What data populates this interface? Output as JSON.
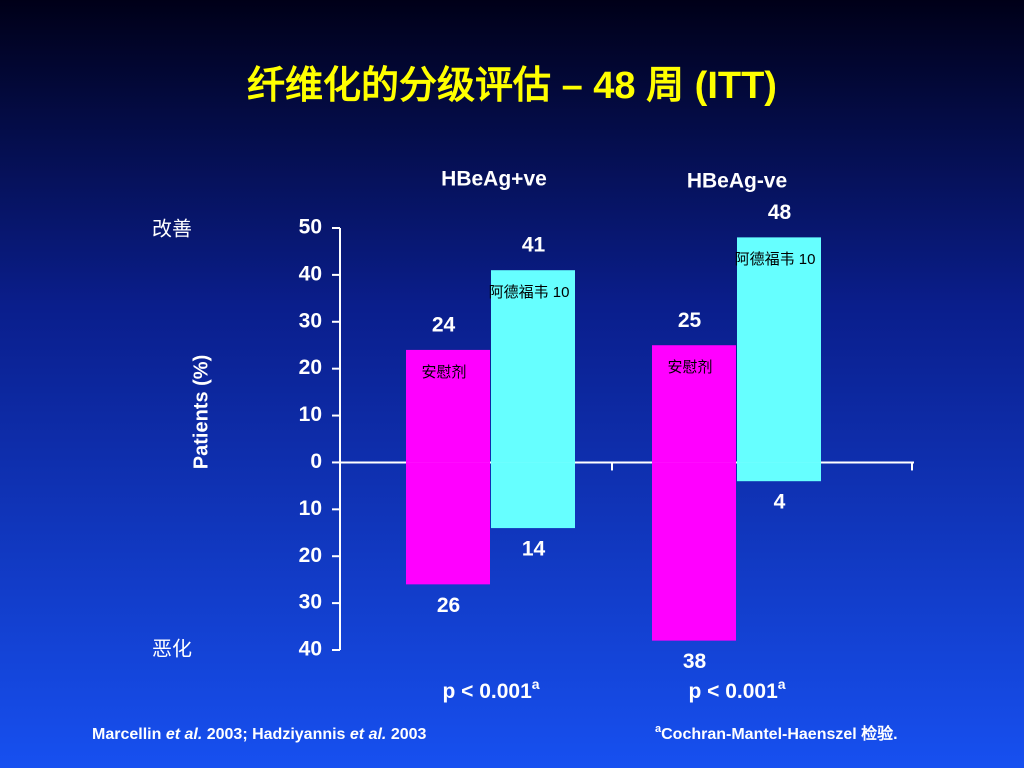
{
  "chart_data": {
    "type": "diverging_bar",
    "title": "纤维化的分级评估 – 48 周 (ITT)",
    "y_label": "Patients (%)",
    "y_top_label": "改善",
    "y_bottom_label": "恶化",
    "categories": [
      "HBeAg+ve",
      "HBeAg-ve"
    ],
    "series": [
      {
        "name": "安慰剂",
        "color": "#ff00ff",
        "values": [
          24,
          25
        ],
        "values_down": [
          -26,
          -38
        ],
        "value_labels_down": [
          "26",
          "38"
        ]
      },
      {
        "name": "阿德福韦 10",
        "color": "#66ffff",
        "values": [
          41,
          48
        ],
        "values_down": [
          -14,
          -4
        ],
        "value_labels_down": [
          "14",
          "4"
        ]
      }
    ],
    "ylim": [
      -40,
      50
    ],
    "yticks": [
      50,
      40,
      30,
      20,
      10,
      0,
      {
        "value": -10,
        "label": "10"
      },
      {
        "value": -20,
        "label": "20"
      },
      {
        "value": -30,
        "label": "30"
      },
      {
        "value": -40,
        "label": "40"
      }
    ],
    "annotations": [
      "p < 0.001",
      "p < 0.001"
    ],
    "footnote_mark": "a",
    "footnote": "Cochran-Mantel-Haenszel 检验.",
    "references": [
      {
        "text": "Marcellin ",
        "italic": false
      },
      {
        "text": "et al.",
        "italic": true
      },
      {
        "text": " 2003; Hadziyannis ",
        "italic": false
      },
      {
        "text": "et al.",
        "italic": true
      },
      {
        "text": " 2003",
        "italic": false
      }
    ]
  }
}
